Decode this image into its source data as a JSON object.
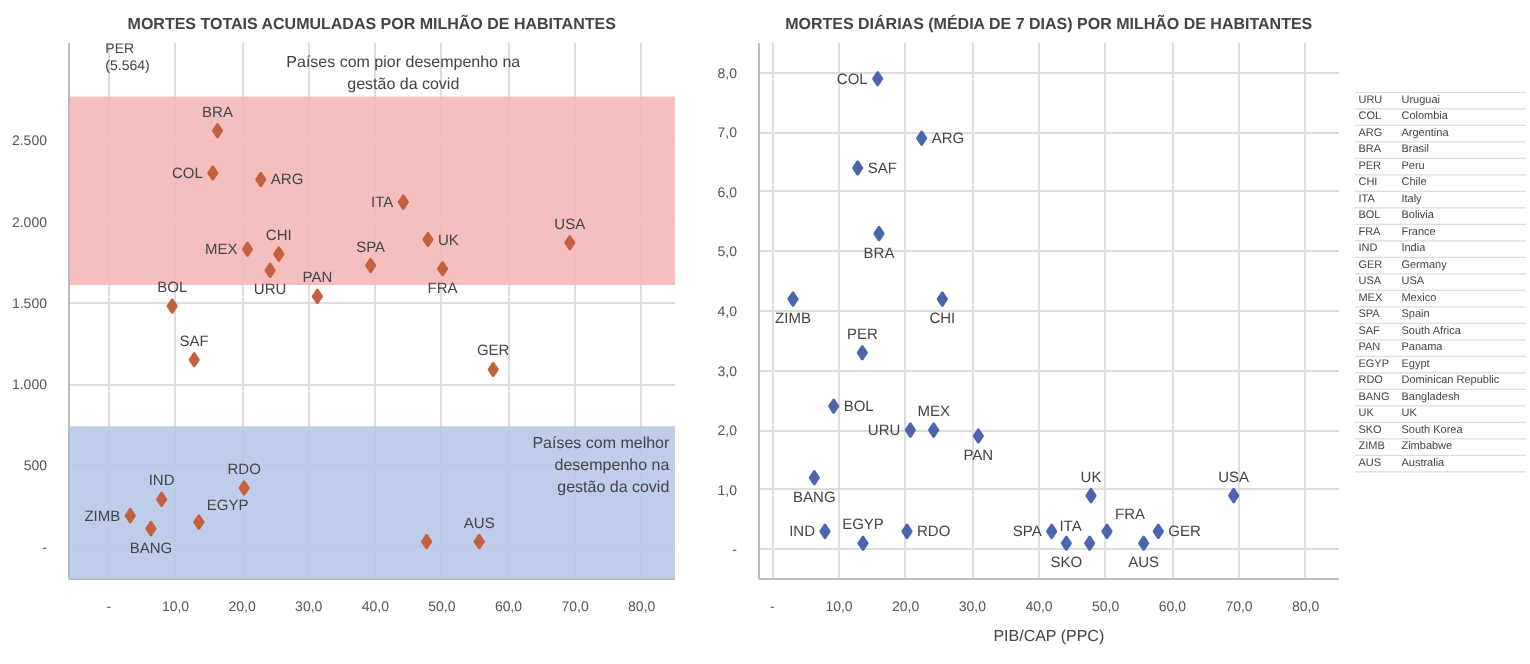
{
  "chart_data": [
    {
      "type": "scatter",
      "title": "MORTES TOTAIS ACUMULADAS POR MILHÃO DE HABITANTES",
      "marker": "diamond",
      "grid": true,
      "xlim": [
        -6,
        85
      ],
      "ylim": [
        -200,
        3100
      ],
      "xticks": [
        {
          "value": 0,
          "label": "-"
        },
        {
          "value": 10,
          "label": "10,0"
        },
        {
          "value": 20,
          "label": "20,0"
        },
        {
          "value": 30,
          "label": "30,0"
        },
        {
          "value": 40,
          "label": "40,0"
        },
        {
          "value": 50,
          "label": "50,0"
        },
        {
          "value": 60,
          "label": "60,0"
        },
        {
          "value": 70,
          "label": "70,0"
        },
        {
          "value": 80,
          "label": "80,0"
        }
      ],
      "yticks": [
        {
          "value": 0,
          "label": "-"
        },
        500,
        {
          "value": 1000,
          "label": "1.000"
        },
        {
          "value": 1500,
          "label": "1.500"
        },
        {
          "value": 2000,
          "label": "2.000"
        },
        {
          "value": 2500,
          "label": "2.500"
        }
      ],
      "bands": [
        {
          "axis": "y",
          "from": 1610,
          "to": 2770,
          "label": "Países com pior desempenho na gestão da covid",
          "color": "#f4b8b8"
        },
        {
          "axis": "y",
          "from": -200,
          "to": 740,
          "label": "Países com melhor desempenho na gestão da covid",
          "color": "#b7c9e8"
        }
      ],
      "annotations": [
        "PER (5.564)"
      ],
      "series": [
        {
          "name": "BRA",
          "color": "#c5603e",
          "x": [
            16.3
          ],
          "values": [
            2560
          ]
        },
        {
          "name": "COL",
          "color": "#c5603e",
          "x": [
            15.6
          ],
          "values": [
            2300
          ]
        },
        {
          "name": "ARG",
          "color": "#c5603e",
          "x": [
            22.8
          ],
          "values": [
            2260
          ]
        },
        {
          "name": "ITA",
          "color": "#c5603e",
          "x": [
            44.2
          ],
          "values": [
            2120
          ]
        },
        {
          "name": "USA",
          "color": "#c5603e",
          "x": [
            69.2
          ],
          "values": [
            1870
          ]
        },
        {
          "name": "UK",
          "color": "#c5603e",
          "x": [
            47.9
          ],
          "values": [
            1890
          ]
        },
        {
          "name": "CHI",
          "color": "#c5603e",
          "x": [
            25.5
          ],
          "values": [
            1800
          ]
        },
        {
          "name": "MEX",
          "color": "#c5603e",
          "x": [
            20.8
          ],
          "values": [
            1830
          ]
        },
        {
          "name": "SPA",
          "color": "#c5603e",
          "x": [
            39.3
          ],
          "values": [
            1730
          ]
        },
        {
          "name": "FRA",
          "color": "#c5603e",
          "x": [
            50.1
          ],
          "values": [
            1710
          ]
        },
        {
          "name": "URU",
          "color": "#c5603e",
          "x": [
            24.2
          ],
          "values": [
            1700
          ]
        },
        {
          "name": "PAN",
          "color": "#c5603e",
          "x": [
            31.3
          ],
          "values": [
            1540
          ]
        },
        {
          "name": "BOL",
          "color": "#c5603e",
          "x": [
            9.5
          ],
          "values": [
            1480
          ]
        },
        {
          "name": "SAF",
          "color": "#c5603e",
          "x": [
            12.8
          ],
          "values": [
            1150
          ]
        },
        {
          "name": "GER",
          "color": "#c5603e",
          "x": [
            57.7
          ],
          "values": [
            1090
          ]
        },
        {
          "name": "RDO",
          "color": "#c5603e",
          "x": [
            20.3
          ],
          "values": [
            360
          ]
        },
        {
          "name": "IND",
          "color": "#c5603e",
          "x": [
            7.9
          ],
          "values": [
            290
          ]
        },
        {
          "name": "ZIMB",
          "color": "#c5603e",
          "x": [
            3.2
          ],
          "values": [
            190
          ]
        },
        {
          "name": "EGYP",
          "color": "#c5603e",
          "x": [
            13.5
          ],
          "values": [
            150
          ]
        },
        {
          "name": "BANG",
          "color": "#c5603e",
          "x": [
            6.3
          ],
          "values": [
            110
          ]
        },
        {
          "color": "#c5603e",
          "x": [
            47.7
          ],
          "values": [
            30
          ]
        },
        {
          "name": "AUS",
          "color": "#c5603e",
          "x": [
            55.6
          ],
          "values": [
            30
          ]
        }
      ]
    },
    {
      "type": "scatter",
      "title": "MORTES DIÁRIAS (MÉDIA DE 7 DIAS) POR MILHÃO DE HABITANTES",
      "xlabel": "PIB/CAP (PPC)",
      "marker": "diamond",
      "grid": true,
      "xlim": [
        -2,
        85
      ],
      "ylim": [
        -0.5,
        8.5
      ],
      "xticks": [
        {
          "value": 0,
          "label": "-"
        },
        {
          "value": 10,
          "label": "10,0"
        },
        {
          "value": 20,
          "label": "20,0"
        },
        {
          "value": 30,
          "label": "30,0"
        },
        {
          "value": 40,
          "label": "40,0"
        },
        {
          "value": 50,
          "label": "50,0"
        },
        {
          "value": 60,
          "label": "60,0"
        },
        {
          "value": 70,
          "label": "70,0"
        },
        {
          "value": 80,
          "label": "80,0"
        }
      ],
      "yticks": [
        {
          "value": 0,
          "label": "-"
        },
        {
          "value": 1,
          "label": "1,0"
        },
        {
          "value": 2,
          "label": "2,0"
        },
        {
          "value": 3,
          "label": "3,0"
        },
        {
          "value": 4,
          "label": "4,0"
        },
        {
          "value": 5,
          "label": "5,0"
        },
        {
          "value": 6,
          "label": "6,0"
        },
        {
          "value": 7,
          "label": "7,0"
        },
        {
          "value": 8,
          "label": "8,0"
        }
      ],
      "series": [
        {
          "name": "COL",
          "color": "#4a66ac",
          "x": [
            15.8
          ],
          "values": [
            7.9
          ]
        },
        {
          "name": "ARG",
          "color": "#4a66ac",
          "x": [
            22.4
          ],
          "values": [
            6.9
          ]
        },
        {
          "name": "SAF",
          "color": "#4a66ac",
          "x": [
            12.8
          ],
          "values": [
            6.4
          ]
        },
        {
          "name": "BRA",
          "color": "#4a66ac",
          "x": [
            16.0
          ],
          "values": [
            5.3
          ]
        },
        {
          "name": "ZIMB",
          "color": "#4a66ac",
          "x": [
            3.1
          ],
          "values": [
            4.2
          ]
        },
        {
          "name": "CHI",
          "color": "#4a66ac",
          "x": [
            25.5
          ],
          "values": [
            4.2
          ]
        },
        {
          "name": "PER",
          "color": "#4a66ac",
          "x": [
            13.5
          ],
          "values": [
            3.3
          ]
        },
        {
          "name": "BOL",
          "color": "#4a66ac",
          "x": [
            9.2
          ],
          "values": [
            2.4
          ]
        },
        {
          "name": "URU",
          "color": "#4a66ac",
          "x": [
            20.7
          ],
          "values": [
            2.0
          ]
        },
        {
          "name": "MEX",
          "color": "#4a66ac",
          "x": [
            24.2
          ],
          "values": [
            2.0
          ]
        },
        {
          "name": "PAN",
          "color": "#4a66ac",
          "x": [
            30.9
          ],
          "values": [
            1.9
          ]
        },
        {
          "name": "BANG",
          "color": "#4a66ac",
          "x": [
            6.3
          ],
          "values": [
            1.2
          ]
        },
        {
          "name": "UK",
          "color": "#4a66ac",
          "x": [
            47.8
          ],
          "values": [
            0.9
          ]
        },
        {
          "name": "USA",
          "color": "#4a66ac",
          "x": [
            69.2
          ],
          "values": [
            0.9
          ]
        },
        {
          "name": "IND",
          "color": "#4a66ac",
          "x": [
            7.9
          ],
          "values": [
            0.3
          ]
        },
        {
          "name": "EGYP",
          "color": "#4a66ac",
          "x": [
            13.6
          ],
          "values": [
            0.1
          ]
        },
        {
          "name": "RDO",
          "color": "#4a66ac",
          "x": [
            20.2
          ],
          "values": [
            0.3
          ]
        },
        {
          "name": "SPA",
          "color": "#4a66ac",
          "x": [
            41.9
          ],
          "values": [
            0.3
          ]
        },
        {
          "name": "SKO",
          "color": "#4a66ac",
          "x": [
            44.1
          ],
          "values": [
            0.1
          ]
        },
        {
          "name": "ITA",
          "color": "#4a66ac",
          "x": [
            47.6
          ],
          "values": [
            0.1
          ]
        },
        {
          "name": "FRA",
          "color": "#4a66ac",
          "x": [
            50.2
          ],
          "values": [
            0.3
          ]
        },
        {
          "name": "AUS",
          "color": "#4a66ac",
          "x": [
            55.7
          ],
          "values": [
            0.1
          ]
        },
        {
          "name": "GER",
          "color": "#4a66ac",
          "x": [
            57.9
          ],
          "values": [
            0.3
          ]
        }
      ]
    },
    {
      "type": "other",
      "annotations": [
        "URU Uruguai",
        "COL Colombia",
        "ARG Argentina",
        "BRA Brasil",
        "PER Peru",
        "CHI Chile",
        "ITA Italy",
        "BOL Bolivia",
        "FRA France",
        "IND India",
        "GER Germany",
        "USA USA",
        "MEX Mexico",
        "SPA Spain",
        "SAF South Africa",
        "PAN Panama",
        "EGYP Egypt",
        "RDO Dominican Republic",
        "BANG Bangladesh",
        "UK UK",
        "SKO South Korea",
        "ZIMB Zimbabwe",
        "AUS Australia"
      ]
    }
  ]
}
